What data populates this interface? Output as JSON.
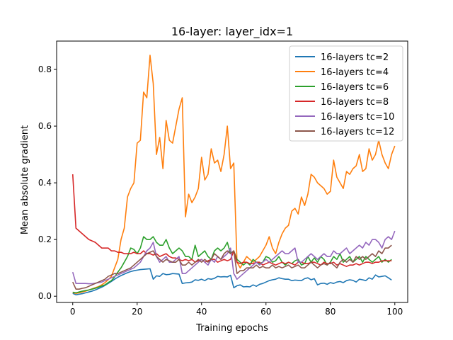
{
  "chart_data": {
    "type": "line",
    "title": "16-layer: layer_idx=1",
    "xlabel": "Training epochs",
    "ylabel": "Mean absolute gradient",
    "xlim": [
      -5,
      104
    ],
    "ylim": [
      -0.022,
      0.9
    ],
    "xticks": [
      0,
      20,
      40,
      60,
      80,
      100
    ],
    "yticks": [
      0.0,
      0.2,
      0.4,
      0.6,
      0.8
    ],
    "xtick_labels": [
      "0",
      "20",
      "40",
      "60",
      "80",
      "100"
    ],
    "ytick_labels": [
      "0.0",
      "0.2",
      "0.4",
      "0.6",
      "0.8"
    ],
    "grid": false,
    "legend_position": "top-right",
    "series": [
      {
        "name": "16-layers tc=2",
        "color": "#1f77b4",
        "values": [
          0.01,
          0.005,
          0.007,
          0.009,
          0.012,
          0.015,
          0.018,
          0.022,
          0.027,
          0.032,
          0.038,
          0.045,
          0.052,
          0.06,
          0.067,
          0.073,
          0.078,
          0.083,
          0.087,
          0.09,
          0.092,
          0.094,
          0.095,
          0.096,
          0.097,
          0.06,
          0.072,
          0.07,
          0.08,
          0.076,
          0.077,
          0.08,
          0.079,
          0.078,
          0.045,
          0.047,
          0.048,
          0.05,
          0.058,
          0.056,
          0.06,
          0.055,
          0.062,
          0.06,
          0.063,
          0.07,
          0.068,
          0.069,
          0.068,
          0.074,
          0.03,
          0.037,
          0.04,
          0.033,
          0.034,
          0.033,
          0.04,
          0.035,
          0.042,
          0.045,
          0.05,
          0.055,
          0.058,
          0.06,
          0.065,
          0.062,
          0.06,
          0.06,
          0.055,
          0.057,
          0.056,
          0.055,
          0.062,
          0.065,
          0.058,
          0.062,
          0.04,
          0.045,
          0.046,
          0.042,
          0.048,
          0.045,
          0.05,
          0.052,
          0.048,
          0.055,
          0.058,
          0.056,
          0.05,
          0.06,
          0.058,
          0.055,
          0.065,
          0.06,
          0.075,
          0.068,
          0.07,
          0.072,
          0.065,
          0.057
        ]
      },
      {
        "name": "16-layers tc=4",
        "color": "#ff7f0e",
        "values": [
          0.013,
          0.01,
          0.012,
          0.015,
          0.018,
          0.022,
          0.026,
          0.03,
          0.034,
          0.04,
          0.048,
          0.058,
          0.07,
          0.1,
          0.13,
          0.2,
          0.24,
          0.35,
          0.38,
          0.4,
          0.54,
          0.55,
          0.72,
          0.7,
          0.85,
          0.75,
          0.5,
          0.56,
          0.45,
          0.62,
          0.55,
          0.54,
          0.6,
          0.66,
          0.7,
          0.28,
          0.36,
          0.33,
          0.35,
          0.38,
          0.49,
          0.41,
          0.43,
          0.52,
          0.47,
          0.48,
          0.44,
          0.5,
          0.6,
          0.45,
          0.47,
          0.12,
          0.1,
          0.12,
          0.14,
          0.13,
          0.12,
          0.13,
          0.14,
          0.16,
          0.18,
          0.21,
          0.17,
          0.15,
          0.19,
          0.22,
          0.24,
          0.25,
          0.3,
          0.31,
          0.29,
          0.35,
          0.32,
          0.36,
          0.43,
          0.42,
          0.4,
          0.39,
          0.38,
          0.36,
          0.37,
          0.48,
          0.42,
          0.4,
          0.38,
          0.44,
          0.43,
          0.45,
          0.46,
          0.5,
          0.44,
          0.45,
          0.52,
          0.48,
          0.5,
          0.55,
          0.5,
          0.47,
          0.45,
          0.5,
          0.53
        ]
      },
      {
        "name": "16-layers tc=6",
        "color": "#2ca02c",
        "values": [
          0.014,
          0.012,
          0.015,
          0.018,
          0.02,
          0.022,
          0.025,
          0.028,
          0.032,
          0.036,
          0.04,
          0.048,
          0.055,
          0.068,
          0.085,
          0.1,
          0.12,
          0.14,
          0.17,
          0.165,
          0.15,
          0.17,
          0.21,
          0.2,
          0.2,
          0.21,
          0.19,
          0.18,
          0.18,
          0.2,
          0.17,
          0.15,
          0.16,
          0.17,
          0.16,
          0.14,
          0.14,
          0.13,
          0.18,
          0.14,
          0.15,
          0.16,
          0.14,
          0.13,
          0.16,
          0.17,
          0.16,
          0.17,
          0.19,
          0.15,
          0.16,
          0.13,
          0.12,
          0.11,
          0.12,
          0.11,
          0.13,
          0.12,
          0.115,
          0.12,
          0.14,
          0.135,
          0.12,
          0.125,
          0.14,
          0.12,
          0.11,
          0.12,
          0.115,
          0.125,
          0.13,
          0.11,
          0.115,
          0.14,
          0.12,
          0.135,
          0.12,
          0.14,
          0.13,
          0.11,
          0.12,
          0.14,
          0.13,
          0.15,
          0.12,
          0.13,
          0.14,
          0.12,
          0.13,
          0.14,
          0.12,
          0.14,
          0.13,
          0.12,
          0.13,
          0.14,
          0.12,
          0.13,
          0.12,
          0.13
        ]
      },
      {
        "name": "16-layers tc=8",
        "color": "#d62728",
        "values": [
          0.43,
          0.24,
          0.23,
          0.22,
          0.21,
          0.2,
          0.195,
          0.19,
          0.18,
          0.17,
          0.17,
          0.17,
          0.16,
          0.16,
          0.155,
          0.155,
          0.15,
          0.15,
          0.15,
          0.155,
          0.15,
          0.15,
          0.16,
          0.15,
          0.15,
          0.145,
          0.15,
          0.14,
          0.145,
          0.15,
          0.14,
          0.135,
          0.135,
          0.13,
          0.125,
          0.13,
          0.125,
          0.13,
          0.12,
          0.125,
          0.13,
          0.12,
          0.125,
          0.13,
          0.13,
          0.12,
          0.125,
          0.13,
          0.125,
          0.13,
          0.16,
          0.12,
          0.115,
          0.12,
          0.12,
          0.115,
          0.115,
          0.12,
          0.12,
          0.11,
          0.115,
          0.12,
          0.115,
          0.11,
          0.115,
          0.12,
          0.115,
          0.12,
          0.115,
          0.11,
          0.12,
          0.12,
          0.115,
          0.115,
          0.12,
          0.12,
          0.115,
          0.11,
          0.12,
          0.115,
          0.115,
          0.12,
          0.11,
          0.115,
          0.11,
          0.105,
          0.11,
          0.11,
          0.115,
          0.11,
          0.115,
          0.12,
          0.12,
          0.115,
          0.12,
          0.12,
          0.125,
          0.125,
          0.125,
          0.125
        ]
      },
      {
        "name": "16-layers tc=10",
        "color": "#9467bd",
        "values": [
          0.085,
          0.045,
          0.045,
          0.045,
          0.045,
          0.044,
          0.044,
          0.046,
          0.048,
          0.05,
          0.055,
          0.06,
          0.065,
          0.07,
          0.075,
          0.08,
          0.085,
          0.09,
          0.095,
          0.1,
          0.11,
          0.12,
          0.14,
          0.16,
          0.17,
          0.19,
          0.14,
          0.12,
          0.13,
          0.14,
          0.12,
          0.12,
          0.13,
          0.14,
          0.08,
          0.08,
          0.09,
          0.1,
          0.11,
          0.12,
          0.13,
          0.12,
          0.11,
          0.13,
          0.12,
          0.14,
          0.13,
          0.14,
          0.15,
          0.17,
          0.08,
          0.06,
          0.07,
          0.08,
          0.09,
          0.1,
          0.11,
          0.12,
          0.11,
          0.12,
          0.13,
          0.12,
          0.13,
          0.14,
          0.15,
          0.16,
          0.15,
          0.15,
          0.16,
          0.17,
          0.12,
          0.12,
          0.13,
          0.14,
          0.15,
          0.14,
          0.13,
          0.14,
          0.15,
          0.14,
          0.14,
          0.16,
          0.15,
          0.15,
          0.16,
          0.17,
          0.15,
          0.16,
          0.17,
          0.18,
          0.17,
          0.19,
          0.18,
          0.2,
          0.2,
          0.19,
          0.17,
          0.2,
          0.21,
          0.2,
          0.23
        ]
      },
      {
        "name": "16-layers tc=12",
        "color": "#8c564b",
        "values": [
          0.05,
          0.025,
          0.025,
          0.028,
          0.03,
          0.035,
          0.04,
          0.045,
          0.05,
          0.055,
          0.06,
          0.07,
          0.075,
          0.08,
          0.08,
          0.085,
          0.09,
          0.095,
          0.1,
          0.11,
          0.12,
          0.13,
          0.14,
          0.15,
          0.155,
          0.16,
          0.14,
          0.13,
          0.12,
          0.13,
          0.125,
          0.12,
          0.12,
          0.13,
          0.11,
          0.11,
          0.12,
          0.11,
          0.12,
          0.13,
          0.12,
          0.13,
          0.12,
          0.13,
          0.15,
          0.14,
          0.13,
          0.15,
          0.16,
          0.15,
          0.16,
          0.08,
          0.09,
          0.09,
          0.1,
          0.1,
          0.1,
          0.11,
          0.1,
          0.105,
          0.1,
          0.1,
          0.11,
          0.1,
          0.105,
          0.1,
          0.105,
          0.11,
          0.1,
          0.105,
          0.11,
          0.1,
          0.1,
          0.11,
          0.12,
          0.11,
          0.1,
          0.11,
          0.115,
          0.11,
          0.12,
          0.11,
          0.1,
          0.12,
          0.13,
          0.12,
          0.13,
          0.12,
          0.14,
          0.13,
          0.14,
          0.13,
          0.14,
          0.15,
          0.14,
          0.16,
          0.15,
          0.17,
          0.17,
          0.18
        ]
      }
    ]
  }
}
